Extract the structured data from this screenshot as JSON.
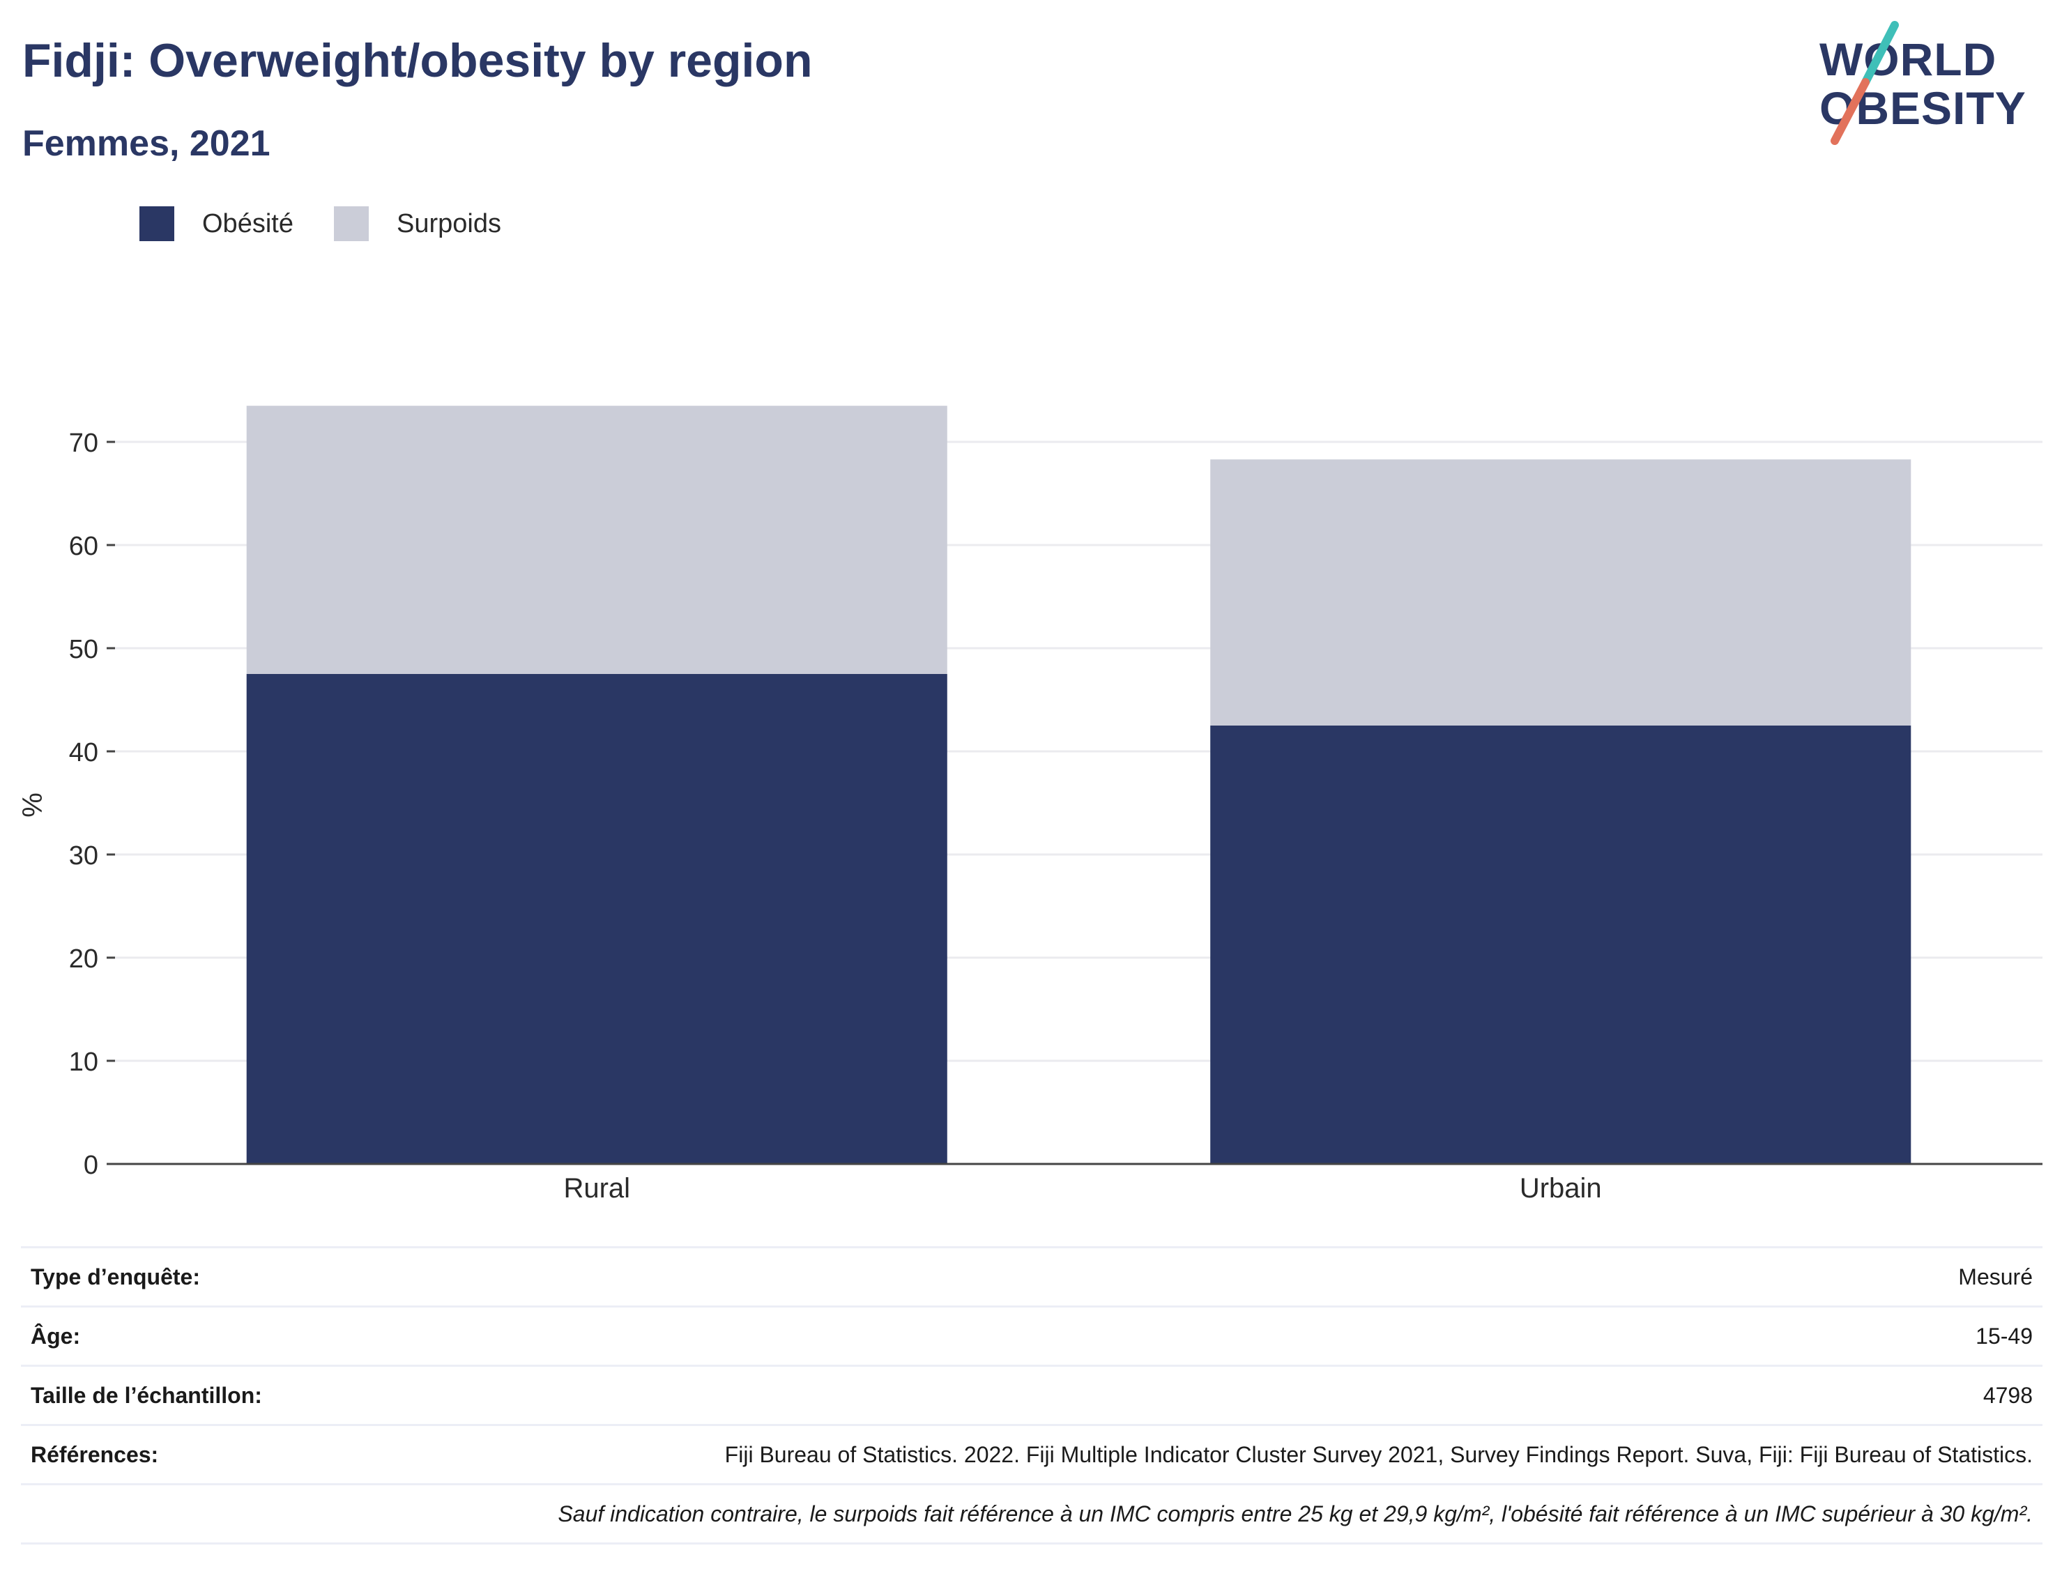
{
  "header": {
    "title": "Fidji: Overweight/obesity by region",
    "subtitle": "Femmes, 2021"
  },
  "logo": {
    "line1": "WORLD",
    "line2": "OBESITY"
  },
  "colors": {
    "obesity": "#2a3764",
    "overweight": "#cbcdd8",
    "text": "#2a3764",
    "accent_teal": "#3fbfb8",
    "accent_coral": "#e2725b"
  },
  "chart_data": {
    "type": "bar",
    "stacked": true,
    "categories": [
      "Rural",
      "Urbain"
    ],
    "series": [
      {
        "name": "Obésité",
        "values": [
          47.5,
          42.5
        ],
        "color": "#2a3764"
      },
      {
        "name": "Surpoids",
        "values": [
          26.0,
          25.8
        ],
        "color": "#cbcdd8"
      }
    ],
    "ylabel": "%",
    "ylim": [
      0,
      75
    ],
    "yticks": [
      0,
      10,
      20,
      30,
      40,
      50,
      60,
      70
    ],
    "grid": true,
    "legend_position": "top-left"
  },
  "info": [
    {
      "key": "Type d’enquête:",
      "value": "Mesuré"
    },
    {
      "key": "Âge:",
      "value": "15-49"
    },
    {
      "key": "Taille de l’échantillon:",
      "value": "4798"
    },
    {
      "key": "Références:",
      "value": "Fiji Bureau of Statistics. 2022. Fiji Multiple Indicator Cluster Survey 2021, Survey Findings Report. Suva, Fiji: Fiji Bureau of Statistics."
    }
  ],
  "note": "Sauf indication contraire, le surpoids fait référence à un IMC compris entre 25 kg et 29,9 kg/m², l'obésité fait référence à un IMC supérieur à 30 kg/m²."
}
